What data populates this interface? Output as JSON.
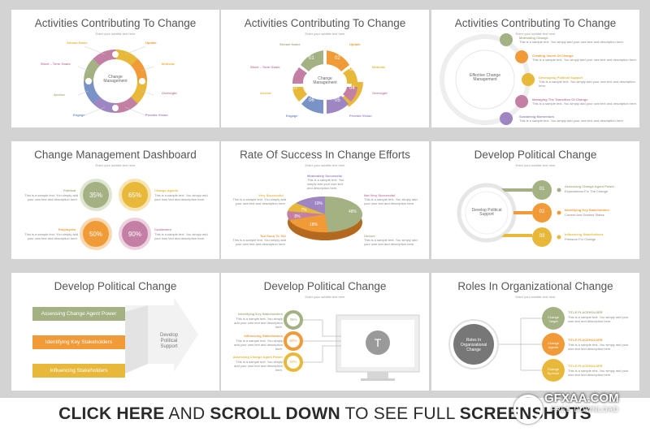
{
  "subtitle": "Enter your subtitle text here",
  "lorem": "This is a sample text.",
  "lorem_long": "This is a sample text. You simply add your own text and description here.",
  "s1": {
    "title": "Activities Contributing To Change",
    "center": "Change Management",
    "labels": [
      "Stream Name",
      "Short – Term Goals",
      "Anchor",
      "Engage",
      "Update",
      "Motivate",
      "Oversight",
      "Provide Vision"
    ]
  },
  "s2": {
    "title": "Activities Contributing To Change",
    "center": "Change Management",
    "nums": [
      "01",
      "02",
      "03",
      "04",
      "05",
      "06",
      "07",
      "08"
    ],
    "labels": [
      "Stream Name",
      "Short – Term Goals",
      "Anchor",
      "Engage",
      "Update",
      "Motivate",
      "Oversight",
      "Provide Vision"
    ]
  },
  "s3": {
    "title": "Activities Contributing To Change",
    "center": "Effective Change Management",
    "items": [
      "Motivating Change",
      "Creating Vision Of Change",
      "Developing Political Support",
      "Managing The Transition Of Change",
      "Sustaining Momentum"
    ]
  },
  "s4": {
    "title": "Change Management Dashboard",
    "items": [
      {
        "label": "Political",
        "pct": "35%"
      },
      {
        "label": "Change Agents",
        "pct": "65%"
      },
      {
        "label": "Employees",
        "pct": "50%"
      },
      {
        "label": "Customers",
        "pct": "90%"
      }
    ]
  },
  "s5": {
    "title": "Rate Of Success In Change Efforts",
    "labels": [
      "Moderately Successful",
      "Very Successful",
      "Not Very Successful",
      "Too Soon To Tell",
      "Unsure"
    ],
    "pcts": [
      "19%",
      "7%",
      "8%",
      "18%",
      "48%"
    ]
  },
  "s6": {
    "title": "Develop Political Change",
    "center": "Develop Political Support",
    "nums": [
      "01",
      "02",
      "03"
    ],
    "items": [
      {
        "t": "Assessing Change Agent Power",
        "d": "Expectations For The Change"
      },
      {
        "t": "Identifying Key Stakeholders",
        "d": "Current And Desired States"
      },
      {
        "t": "Influencing Stakeholders",
        "d": "Pressure For Change"
      }
    ]
  },
  "s7": {
    "title": "Develop Political Change",
    "arrow": "Develop Political Support",
    "bars": [
      "Assessing Change Agent Power",
      "Identifying Key Stakeholders",
      "Influencing Stakeholders"
    ]
  },
  "s8": {
    "title": "Develop Political Change",
    "letter": "T",
    "items": [
      {
        "t": "Identifying Key Stakeholders",
        "p": "35%"
      },
      {
        "t": "Influencing Stakeholders",
        "p": "60%"
      },
      {
        "t": "Assessing Change Agent Power",
        "p": "50%"
      }
    ]
  },
  "s9": {
    "title": "Roles In Organizational Change",
    "center": "Roles In Organizational Change",
    "circles": [
      "Change Target",
      "Change Agents",
      "Change Sponsor"
    ],
    "placeholder": "TITLE PLACEHOLDER"
  },
  "cta": {
    "p1": "CLICK HERE",
    "p2": " AND ",
    "p3": "SCROLL DOWN",
    "p4": " TO SEE FULL ",
    "p5": "SCREENSHOTS"
  },
  "watermark": {
    "brand": "GFXAA.COM",
    "sub": "FREE DOWNLOAD"
  },
  "colors": {
    "gold": "#e8b83a",
    "orange": "#f09a38",
    "green": "#a3b183",
    "purple": "#9d86c2",
    "blue": "#7a93c6",
    "pink": "#c47fa4",
    "grey": "#777777"
  }
}
